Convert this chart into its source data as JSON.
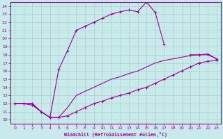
{
  "xlabel": "Windchill (Refroidissement éolien,°C)",
  "bg_color": "#c8eaea",
  "grid_color": "#a8d0d0",
  "line_color": "#990099",
  "xlim": [
    -0.5,
    23.5
  ],
  "ylim": [
    9.5,
    24.5
  ],
  "xticks": [
    0,
    1,
    2,
    3,
    4,
    5,
    6,
    7,
    8,
    9,
    10,
    11,
    12,
    13,
    14,
    15,
    16,
    17,
    18,
    19,
    20,
    21,
    22,
    23
  ],
  "yticks": [
    10,
    11,
    12,
    13,
    14,
    15,
    16,
    17,
    18,
    19,
    20,
    21,
    22,
    23,
    24
  ],
  "line1_x": [
    0,
    1,
    2,
    3,
    4,
    5,
    6,
    7,
    8,
    9,
    10,
    11,
    12,
    13,
    14,
    15,
    16,
    17,
    20,
    21,
    22,
    23
  ],
  "line1_y": [
    12.0,
    12.0,
    12.0,
    11.0,
    10.3,
    16.2,
    18.5,
    21.0,
    21.5,
    22.0,
    22.5,
    23.0,
    23.3,
    23.5,
    23.3,
    24.5,
    23.2,
    19.3,
    18.0,
    18.0,
    18.1,
    17.5
  ],
  "line2_x": [
    0,
    1,
    2,
    3,
    4,
    5,
    6,
    7,
    8,
    9,
    10,
    11,
    12,
    13,
    14,
    15,
    16,
    17,
    18,
    19,
    20,
    21,
    22,
    23
  ],
  "line2_y": [
    12.0,
    12.0,
    11.8,
    11.0,
    10.3,
    10.3,
    10.5,
    11.0,
    11.5,
    12.0,
    12.3,
    12.7,
    13.0,
    13.3,
    13.7,
    14.0,
    14.5,
    15.0,
    15.5,
    16.0,
    16.5,
    17.0,
    17.2,
    17.3
  ],
  "line3_x": [
    0,
    2,
    3,
    4,
    5,
    6,
    7,
    8,
    9,
    10,
    11,
    12,
    13,
    14,
    15,
    16,
    17,
    18,
    19,
    20,
    21,
    22,
    23
  ],
  "line3_y": [
    12.0,
    12.0,
    11.0,
    10.3,
    10.3,
    11.5,
    13.0,
    13.5,
    14.0,
    14.5,
    15.0,
    15.3,
    15.7,
    16.0,
    16.5,
    17.0,
    17.3,
    17.5,
    17.7,
    17.9,
    18.0,
    18.0,
    17.5
  ]
}
